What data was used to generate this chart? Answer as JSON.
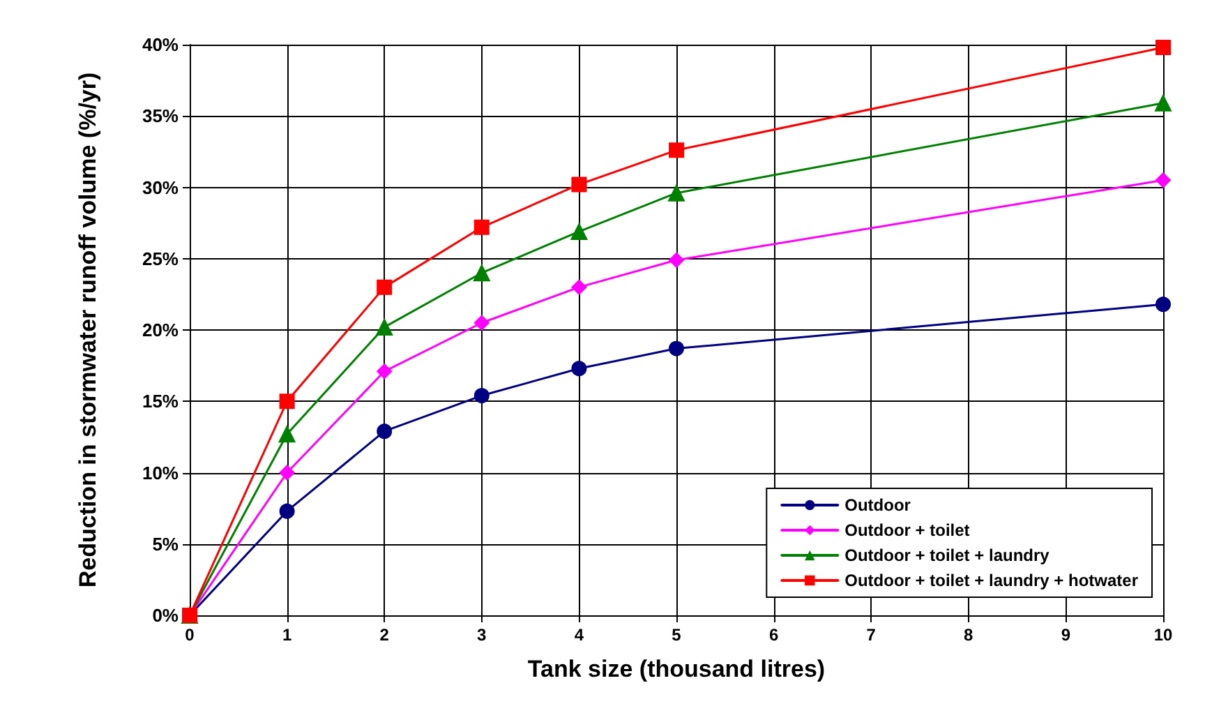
{
  "chart_data": {
    "type": "line",
    "xlabel": "Tank size (thousand litres)",
    "ylabel": "Reduction in stormwater runoff volume (%/yr)",
    "x": [
      0,
      1,
      2,
      3,
      4,
      5,
      10
    ],
    "series": [
      {
        "name": "Outdoor",
        "color": "#000080",
        "marker": "circle",
        "values": [
          0,
          7.3,
          12.9,
          15.4,
          17.3,
          18.7,
          21.8
        ]
      },
      {
        "name": "Outdoor + toilet",
        "color": "#ff00ff",
        "marker": "diamond",
        "values": [
          0,
          10,
          17.1,
          20.5,
          23,
          24.9,
          30.5
        ]
      },
      {
        "name": "Outdoor + toilet + laundry",
        "color": "#008000",
        "marker": "triangle",
        "values": [
          0,
          12.7,
          20.2,
          24,
          26.9,
          29.6,
          35.9
        ]
      },
      {
        "name": "Outdoor + toilet + laundry + hotwater",
        "color": "#ff0000",
        "marker": "square",
        "values": [
          0,
          15,
          23,
          27.2,
          30.2,
          32.6,
          39.8
        ]
      }
    ],
    "xlim": [
      0,
      10
    ],
    "xticks": [
      0,
      1,
      2,
      3,
      4,
      5,
      6,
      7,
      8,
      9,
      10
    ],
    "ylim": [
      0,
      40
    ],
    "yticks": [
      {
        "value": 0,
        "label": "0%"
      },
      {
        "value": 5,
        "label": "5%"
      },
      {
        "value": 10,
        "label": "10%"
      },
      {
        "value": 15,
        "label": "15%"
      },
      {
        "value": 20,
        "label": "20%"
      },
      {
        "value": 25,
        "label": "25%"
      },
      {
        "value": 30,
        "label": "30%"
      },
      {
        "value": 35,
        "label": "35%"
      },
      {
        "value": 40,
        "label": "40%"
      }
    ],
    "grid": true,
    "legend": "bottom right",
    "line_style": "solid"
  }
}
